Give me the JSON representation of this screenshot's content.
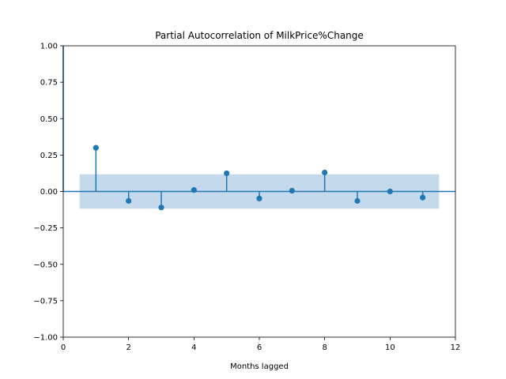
{
  "chart_data": {
    "type": "stem",
    "title": "Partial Autocorrelation of MilkPrice%Change",
    "xlabel": "Months lagged",
    "ylabel": "",
    "xlim": [
      0,
      12
    ],
    "ylim": [
      -1.0,
      1.0
    ],
    "xticks": [
      "0",
      "2",
      "4",
      "6",
      "8",
      "10",
      "12"
    ],
    "yticks": [
      "1.00",
      "0.75",
      "0.50",
      "0.25",
      "0.00",
      "−0.25",
      "−0.50",
      "−0.75",
      "−1.00"
    ],
    "lags": [
      1,
      2,
      3,
      4,
      5,
      6,
      7,
      8,
      9,
      10,
      11
    ],
    "values": [
      0.3,
      -0.065,
      -0.11,
      0.01,
      0.125,
      -0.048,
      0.005,
      0.13,
      -0.065,
      0.0,
      -0.042
    ],
    "confidence_band": {
      "lower": -0.118,
      "upper": 0.118,
      "x_start": 0.5,
      "x_end": 11.5
    },
    "grid": false,
    "colors": {
      "stem": "#1f77b4",
      "band": "#c5d9ec",
      "axis": "#000000"
    }
  }
}
